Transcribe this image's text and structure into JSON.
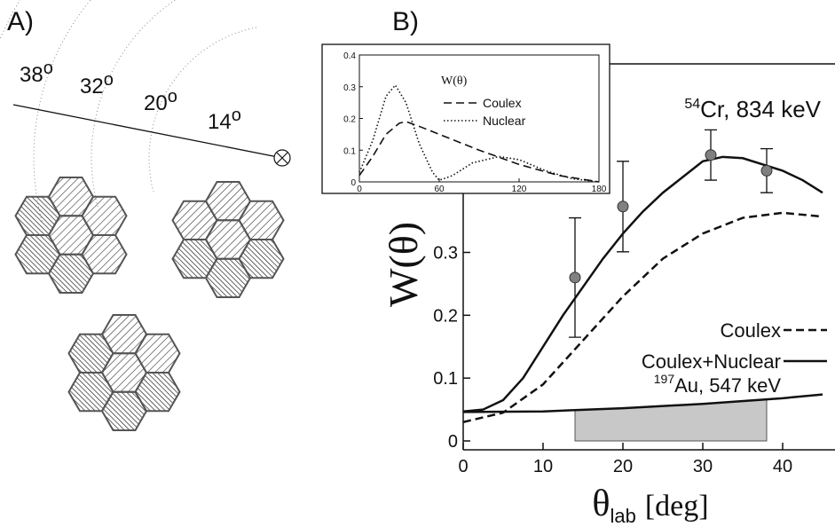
{
  "panel_a": {
    "label": "A)",
    "angles": [
      {
        "value": "38",
        "sup": "o"
      },
      {
        "value": "32",
        "sup": "o"
      },
      {
        "value": "20",
        "sup": "o"
      },
      {
        "value": "14",
        "sup": "o"
      }
    ]
  },
  "panel_b_label": "B)",
  "chart_data": [
    {
      "type": "line",
      "ylabel": "W(θ)",
      "xlabel": {
        "symbol": "θ",
        "sub": "lab",
        "unit": "[deg]"
      },
      "xlim": [
        0,
        45
      ],
      "ylim": [
        0,
        0.6
      ],
      "xticks": [
        0,
        10,
        20,
        30,
        40
      ],
      "yticks": [
        0,
        0.1,
        0.2,
        0.3
      ],
      "annotations": [
        {
          "sup": "54",
          "text": "Cr, 834 keV"
        },
        {
          "sup": "197",
          "text": "Au, 547 keV"
        }
      ],
      "series": [
        {
          "name": "Coulex",
          "style": "dashed",
          "color": "#111111",
          "x": [
            0,
            5,
            10,
            15,
            20,
            25,
            30,
            35,
            40,
            45
          ],
          "values": [
            0.03,
            0.045,
            0.09,
            0.16,
            0.23,
            0.29,
            0.33,
            0.355,
            0.363,
            0.357
          ]
        },
        {
          "name": "Coulex+Nuclear",
          "style": "solid",
          "color": "#111111",
          "x": [
            0,
            2.5,
            5,
            7.5,
            10,
            12.5,
            15,
            17.5,
            20,
            22.5,
            25,
            27.5,
            30,
            32.5,
            35,
            37.5,
            40,
            42.5,
            45
          ],
          "values": [
            0.047,
            0.05,
            0.065,
            0.1,
            0.15,
            0.2,
            0.245,
            0.29,
            0.33,
            0.365,
            0.395,
            0.42,
            0.445,
            0.452,
            0.45,
            0.44,
            0.43,
            0.415,
            0.395
          ]
        },
        {
          "style": "solid",
          "color": "#111111",
          "shade_x": [
            14,
            38
          ],
          "shade_color": "#c8c8c8",
          "x": [
            0,
            10,
            20,
            30,
            40,
            45
          ],
          "values": [
            0.046,
            0.047,
            0.052,
            0.059,
            0.068,
            0.074
          ]
        },
        {
          "style": "points",
          "color": "#808080",
          "x": [
            14,
            20,
            31,
            38
          ],
          "values": [
            0.26,
            0.373,
            0.455,
            0.43
          ],
          "errors": [
            0.095,
            0.072,
            0.04,
            0.035
          ]
        }
      ]
    },
    {
      "type": "line",
      "legend_title": "W(θ)",
      "xlim": [
        0,
        180
      ],
      "ylim": [
        0,
        0.4
      ],
      "xticks": [
        0,
        60,
        120,
        180
      ],
      "yticks": [
        0,
        0.1,
        0.2,
        0.3,
        0.4
      ],
      "series": [
        {
          "name": "Coulex",
          "style": "dashed",
          "color": "#111111",
          "x": [
            0,
            10,
            20,
            30,
            35,
            45,
            60,
            90,
            120,
            150,
            180
          ],
          "values": [
            0.02,
            0.08,
            0.15,
            0.185,
            0.19,
            0.175,
            0.15,
            0.1,
            0.055,
            0.02,
            0
          ]
        },
        {
          "name": "Nuclear",
          "style": "dotted",
          "color": "#111111",
          "x": [
            0,
            10,
            20,
            27,
            35,
            45,
            55,
            60,
            70,
            85,
            105,
            120,
            140,
            160,
            180
          ],
          "values": [
            0.03,
            0.13,
            0.27,
            0.305,
            0.25,
            0.12,
            0.03,
            0.005,
            0.02,
            0.06,
            0.08,
            0.07,
            0.035,
            0.01,
            0
          ]
        }
      ]
    }
  ]
}
